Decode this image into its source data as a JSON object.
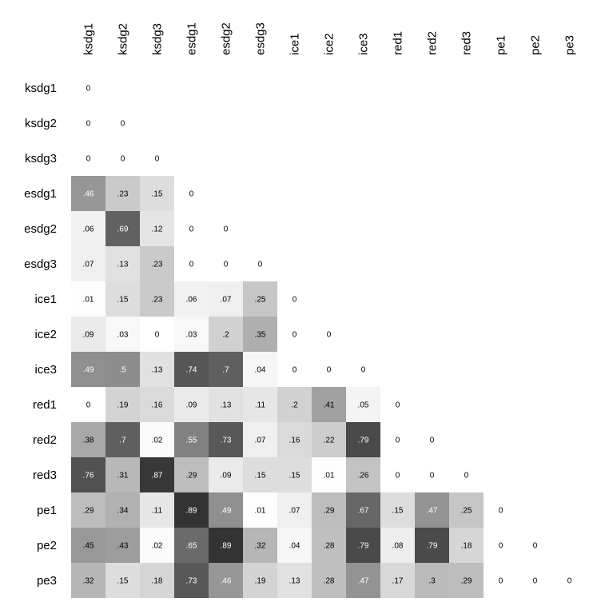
{
  "chart_data": {
    "type": "heatmap",
    "title": "",
    "xlabel": "",
    "ylabel": "",
    "value_range": [
      0,
      1
    ],
    "color_low": "#ffffff",
    "color_high": "#1a1a1a",
    "columns": [
      "ksdg1",
      "ksdg2",
      "ksdg3",
      "esdg1",
      "esdg2",
      "esdg3",
      "ice1",
      "ice2",
      "ice3",
      "red1",
      "red2",
      "red3",
      "pe1",
      "pe2",
      "pe3"
    ],
    "rows": [
      "ksdg1",
      "ksdg2",
      "ksdg3",
      "esdg1",
      "esdg2",
      "esdg3",
      "ice1",
      "ice2",
      "ice3",
      "red1",
      "red2",
      "red3",
      "pe1",
      "pe2",
      "pe3"
    ],
    "cells": [
      [
        [
          "0",
          0
        ]
      ],
      [
        [
          "0",
          0
        ],
        [
          "0",
          0
        ]
      ],
      [
        [
          "0",
          0
        ],
        [
          "0",
          0
        ],
        [
          "0",
          0
        ]
      ],
      [
        [
          ".46",
          0.46
        ],
        [
          ".23",
          0.23
        ],
        [
          ".15",
          0.15
        ],
        [
          "0",
          0
        ]
      ],
      [
        [
          ".06",
          0.06
        ],
        [
          ".69",
          0.69
        ],
        [
          ".12",
          0.12
        ],
        [
          "0",
          0
        ],
        [
          "0",
          0
        ]
      ],
      [
        [
          ".07",
          0.07
        ],
        [
          ".13",
          0.13
        ],
        [
          ".23",
          0.23
        ],
        [
          "0",
          0
        ],
        [
          "0",
          0
        ],
        [
          "0",
          0
        ]
      ],
      [
        [
          ".01",
          0.01
        ],
        [
          ".15",
          0.15
        ],
        [
          ".23",
          0.23
        ],
        [
          ".06",
          0.06
        ],
        [
          ".07",
          0.07
        ],
        [
          ".25",
          0.25
        ],
        [
          "0",
          0
        ]
      ],
      [
        [
          ".09",
          0.09
        ],
        [
          ".03",
          0.03
        ],
        [
          "0",
          0
        ],
        [
          ".03",
          0.03
        ],
        [
          ".2",
          0.2
        ],
        [
          ".35",
          0.35
        ],
        [
          "0",
          0
        ],
        [
          "0",
          0
        ]
      ],
      [
        [
          ".49",
          0.49
        ],
        [
          ".5",
          0.5
        ],
        [
          ".13",
          0.13
        ],
        [
          ".74",
          0.74
        ],
        [
          ".7",
          0.7
        ],
        [
          ".04",
          0.04
        ],
        [
          "0",
          0
        ],
        [
          "0",
          0
        ],
        [
          "0",
          0
        ]
      ],
      [
        [
          "0",
          0
        ],
        [
          ".19",
          0.19
        ],
        [
          ".16",
          0.16
        ],
        [
          ".09",
          0.09
        ],
        [
          ".13",
          0.13
        ],
        [
          ".11",
          0.11
        ],
        [
          ".2",
          0.2
        ],
        [
          ".41",
          0.41
        ],
        [
          ".05",
          0.05
        ],
        [
          "0",
          0
        ]
      ],
      [
        [
          ".38",
          0.38
        ],
        [
          ".7",
          0.7
        ],
        [
          ".02",
          0.02
        ],
        [
          ".55",
          0.55
        ],
        [
          ".73",
          0.73
        ],
        [
          ".07",
          0.07
        ],
        [
          ".16",
          0.16
        ],
        [
          ".22",
          0.22
        ],
        [
          ".79",
          0.79
        ],
        [
          "0",
          0
        ],
        [
          "0",
          0
        ]
      ],
      [
        [
          ".76",
          0.76
        ],
        [
          ".31",
          0.31
        ],
        [
          ".87",
          0.87
        ],
        [
          ".29",
          0.29
        ],
        [
          ".09",
          0.09
        ],
        [
          ".15",
          0.15
        ],
        [
          ".15",
          0.15
        ],
        [
          ".01",
          0.01
        ],
        [
          ".26",
          0.26
        ],
        [
          "0",
          0
        ],
        [
          "0",
          0
        ],
        [
          "0",
          0
        ]
      ],
      [
        [
          ".29",
          0.29
        ],
        [
          ".34",
          0.34
        ],
        [
          ".11",
          0.11
        ],
        [
          ".89",
          0.89
        ],
        [
          ".49",
          0.49
        ],
        [
          ".01",
          0.01
        ],
        [
          ".07",
          0.07
        ],
        [
          ".29",
          0.29
        ],
        [
          ".67",
          0.67
        ],
        [
          ".15",
          0.15
        ],
        [
          ".47",
          0.47
        ],
        [
          ".25",
          0.25
        ],
        [
          "0",
          0
        ]
      ],
      [
        [
          ".45",
          0.45
        ],
        [
          ".43",
          0.43
        ],
        [
          ".02",
          0.02
        ],
        [
          ".65",
          0.65
        ],
        [
          ".89",
          0.89
        ],
        [
          ".32",
          0.32
        ],
        [
          ".04",
          0.04
        ],
        [
          ".28",
          0.28
        ],
        [
          ".79",
          0.79
        ],
        [
          ".08",
          0.08
        ],
        [
          ".79",
          0.79
        ],
        [
          ".18",
          0.18
        ],
        [
          "0",
          0
        ],
        [
          "0",
          0
        ]
      ],
      [
        [
          ".32",
          0.32
        ],
        [
          ".15",
          0.15
        ],
        [
          ".18",
          0.18
        ],
        [
          ".73",
          0.73
        ],
        [
          ".46",
          0.46
        ],
        [
          ".19",
          0.19
        ],
        [
          ".13",
          0.13
        ],
        [
          ".28",
          0.28
        ],
        [
          ".47",
          0.47
        ],
        [
          ".17",
          0.17
        ],
        [
          ".3",
          0.3
        ],
        [
          ".29",
          0.29
        ],
        [
          "0",
          0
        ],
        [
          "0",
          0
        ],
        [
          "0",
          0
        ]
      ]
    ],
    "diagonal_and_zero_cells_shaded": false
  }
}
